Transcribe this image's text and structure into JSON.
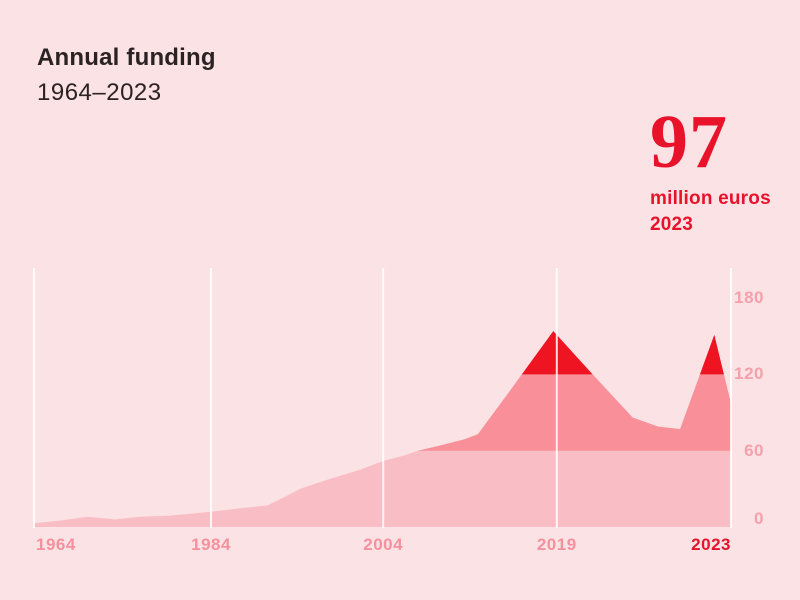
{
  "page": {
    "background": "#fbe2e4"
  },
  "header": {
    "title": "Annual funding",
    "subtitle": "1964–2023"
  },
  "highlight": {
    "value": "97",
    "unit": "million euros",
    "year": "2023",
    "color": "#e8132b"
  },
  "chart_data": {
    "type": "area",
    "title": "Annual funding",
    "period": "1964–2023",
    "unit": "million euros",
    "final_value": 97,
    "final_year": "2023",
    "grid": "vertical-gridlines-only",
    "legend": "none",
    "ylim": [
      0,
      204
    ],
    "y_ticks": [
      0,
      60,
      120,
      180
    ],
    "x_ticks": [
      {
        "label": "1964",
        "pos": 0.0
      },
      {
        "label": "1984",
        "pos": 0.254
      },
      {
        "label": "2004",
        "pos": 0.501
      },
      {
        "label": "2019",
        "pos": 0.75
      },
      {
        "label": "2023",
        "pos": 1.0
      }
    ],
    "value_bands": [
      {
        "range": [
          0,
          60
        ],
        "color": "#f9bec5"
      },
      {
        "range": [
          60,
          120
        ],
        "color": "#f98f98"
      },
      {
        "range": [
          120,
          204
        ],
        "color": "#ee1422"
      }
    ],
    "points": [
      [
        0.0,
        3
      ],
      [
        0.037,
        5
      ],
      [
        0.077,
        8
      ],
      [
        0.116,
        6
      ],
      [
        0.152,
        8
      ],
      [
        0.195,
        9
      ],
      [
        0.254,
        12
      ],
      [
        0.301,
        15
      ],
      [
        0.335,
        17
      ],
      [
        0.361,
        24
      ],
      [
        0.382,
        30
      ],
      [
        0.425,
        38
      ],
      [
        0.468,
        45
      ],
      [
        0.501,
        52
      ],
      [
        0.53,
        56
      ],
      [
        0.551,
        60
      ],
      [
        0.582,
        64
      ],
      [
        0.618,
        69
      ],
      [
        0.637,
        73
      ],
      [
        0.676,
        102
      ],
      [
        0.745,
        154
      ],
      [
        0.798,
        122
      ],
      [
        0.859,
        86
      ],
      [
        0.895,
        79
      ],
      [
        0.927,
        77
      ],
      [
        0.976,
        151
      ],
      [
        1.0,
        97
      ]
    ],
    "colors": {
      "gridline": "#ffffff",
      "y_axis_label": "#f5a0ac",
      "x_axis_label": "#f5919f",
      "x_axis_last_label": "#e8132b"
    }
  }
}
